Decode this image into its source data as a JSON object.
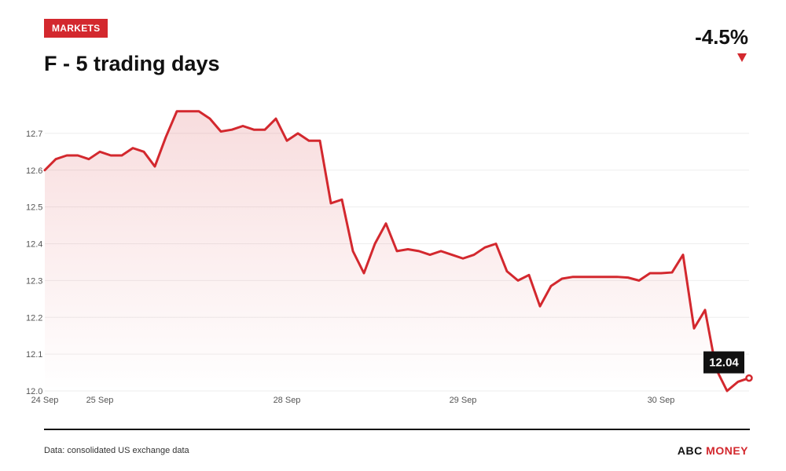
{
  "header": {
    "tag": "MARKETS",
    "title": "F - 5 trading days",
    "change": "-4.5%"
  },
  "footer": {
    "source": "Data: consolidated US exchange data",
    "brand_part1": "ABC",
    "brand_part2": "MONEY"
  },
  "colors": {
    "accent": "#d3282e",
    "text": "#111111"
  },
  "chart_data": {
    "type": "area",
    "title": "F - 5 trading days",
    "xlabel": "",
    "ylabel": "",
    "ylim": [
      12.0,
      12.8
    ],
    "yticks": [
      12.0,
      12.1,
      12.2,
      12.3,
      12.4,
      12.5,
      12.6,
      12.7
    ],
    "ytick_labels": [
      "12.0",
      "12.1",
      "12.2",
      "12.3",
      "12.4",
      "12.5",
      "12.6",
      "12.7"
    ],
    "xtick_labels": [
      "24 Sep",
      "25 Sep",
      "28 Sep",
      "29 Sep",
      "30 Sep"
    ],
    "grid": true,
    "last_value_label": "12.04",
    "series": [
      {
        "values": [
          12.6,
          12.63,
          12.64,
          12.64,
          12.63,
          12.65,
          12.64,
          12.64,
          12.66,
          12.65,
          12.61,
          12.69,
          12.76,
          12.76,
          12.76,
          12.74,
          12.705,
          12.71,
          12.72,
          12.71,
          12.71,
          12.74,
          12.68,
          12.7,
          12.68,
          12.68,
          12.51,
          12.52,
          12.38,
          12.32,
          12.4,
          12.455,
          12.38,
          12.385,
          12.38,
          12.37,
          12.38,
          12.37,
          12.36,
          12.37,
          12.39,
          12.4,
          12.325,
          12.3,
          12.315,
          12.23,
          12.285,
          12.305,
          12.31,
          12.31,
          12.31,
          12.31,
          12.31,
          12.308,
          12.3,
          12.32,
          12.32,
          12.322,
          12.37,
          12.17,
          12.22,
          12.06,
          12.0,
          12.025,
          12.035
        ]
      }
    ]
  }
}
